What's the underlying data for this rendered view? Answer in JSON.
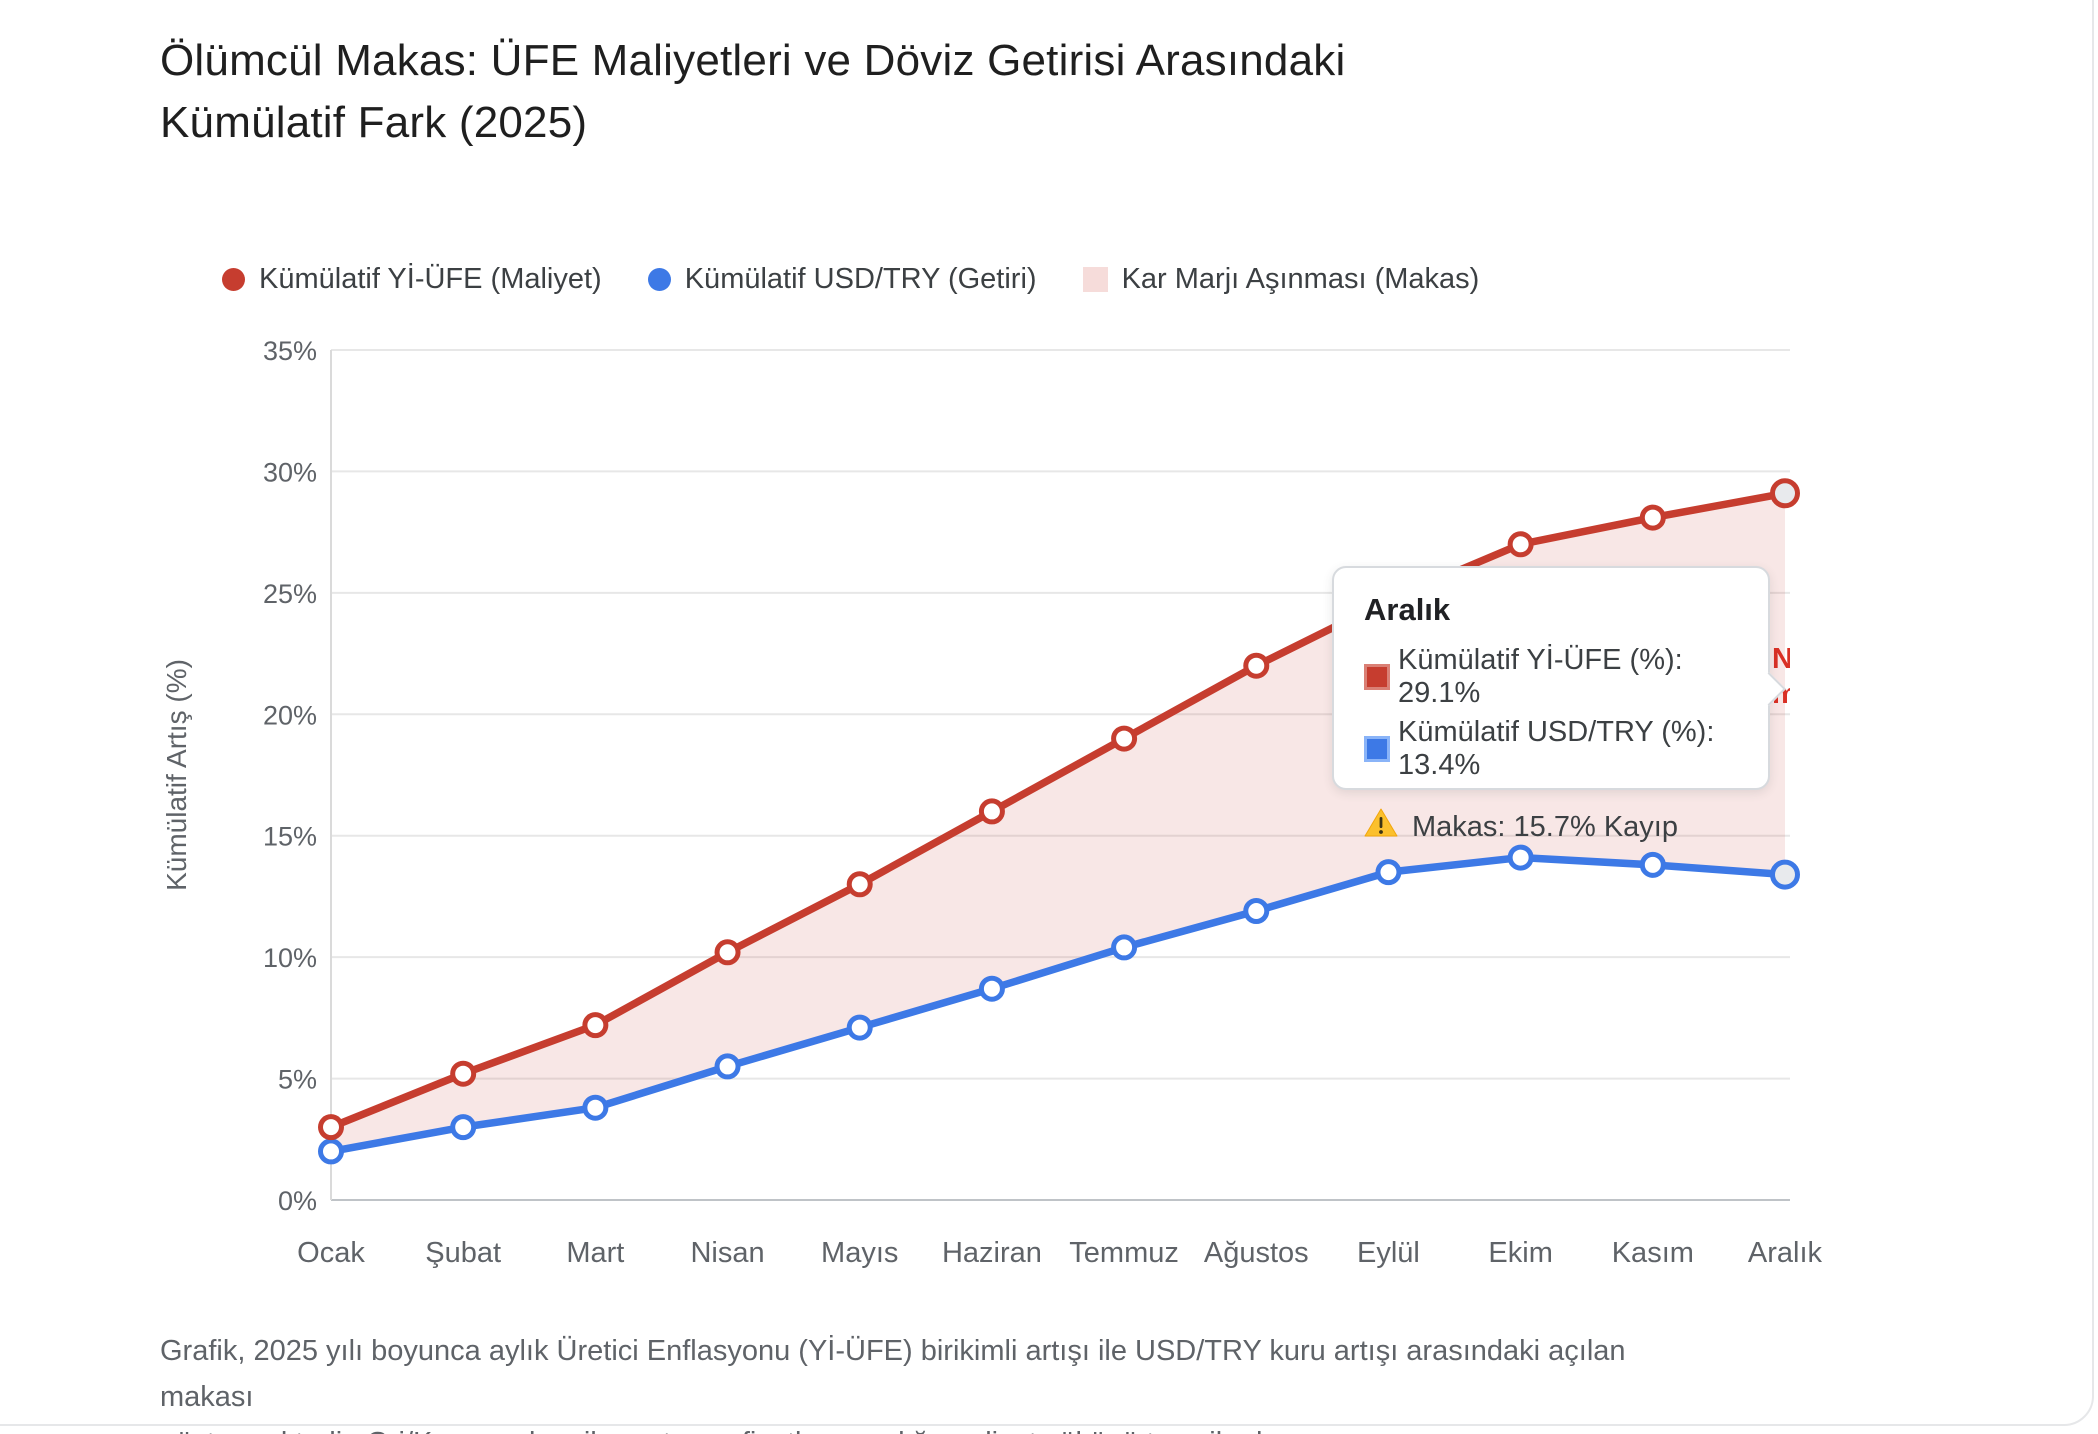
{
  "title_lines": [
    "Ölümcül Makas: ÜFE Maliyetleri ve Döviz Getirisi Arasındaki",
    "Kümülatif Fark (2025)"
  ],
  "legend": {
    "items": [
      {
        "label": "Kümülatif Yİ-ÜFE (Maliyet)",
        "swatch": "dot",
        "color": "#c63d2f"
      },
      {
        "label": "Kümülatif USD/TRY (Getiri)",
        "swatch": "dot",
        "color": "#3d79e6"
      },
      {
        "label": "Kar Marjı Aşınması (Makas)",
        "swatch": "square",
        "color": "#f6dcda"
      }
    ]
  },
  "chart_data": {
    "type": "line",
    "categories": [
      "Ocak",
      "Şubat",
      "Mart",
      "Nisan",
      "Mayıs",
      "Haziran",
      "Temmuz",
      "Ağustos",
      "Eylül",
      "Ekim",
      "Kasım",
      "Aralık"
    ],
    "series": [
      {
        "name": "Kümülatif Yİ-ÜFE (%)",
        "color": "#c63d2f",
        "values": [
          3.0,
          5.2,
          7.2,
          10.2,
          13.0,
          16.0,
          19.0,
          22.0,
          24.7,
          27.0,
          28.1,
          29.1
        ]
      },
      {
        "name": "Kümülatif USD/TRY (%)",
        "color": "#3d79e6",
        "values": [
          2.0,
          3.0,
          3.8,
          5.5,
          7.1,
          8.7,
          10.4,
          11.9,
          13.5,
          14.1,
          13.8,
          13.4
        ]
      }
    ],
    "area_between_series": {
      "label": "Kar Marjı Aşınması (Makas)",
      "fill": "#c63d2f",
      "fill_opacity": 0.12
    },
    "title": "Ölümcül Makas: ÜFE Maliyetleri ve Döviz Getirisi Arasındaki Kümülatif Fark (2025)",
    "xlabel": "",
    "ylabel": "Kümülatif Artış (%)",
    "ylim": [
      0,
      35
    ],
    "ytick_step": 5,
    "ytick_suffix": "%",
    "grid": "horizontal",
    "legend_position": "top",
    "highlighted_category": "Aralık"
  },
  "tooltip": {
    "title": "Aralık",
    "rows": [
      {
        "label": "Kümülatif Yİ-ÜFE (%): 29.1%",
        "color": "#c63d2f",
        "border": "#da8075"
      },
      {
        "label": "Kümülatif USD/TRY (%): 13.4%",
        "color": "#3d79e6",
        "border": "#8ab4f8"
      }
    ],
    "warning": "Makas: 15.7% Kayıp"
  },
  "annotation_fragment": {
    "text": "N\nm",
    "color": "#d93025"
  },
  "footer_lines": [
    "Grafik, 2025 yılı boyunca aylık Üretici Enflasyonu (Yİ-ÜFE) birikimli artışı ile USD/TRY kuru artışı arasındaki açılan makası",
    "göstermektedir. Gri/Kırmızı alan, ihracatçının fiyatlayamadığı maliyet yükünü temsil eder."
  ]
}
